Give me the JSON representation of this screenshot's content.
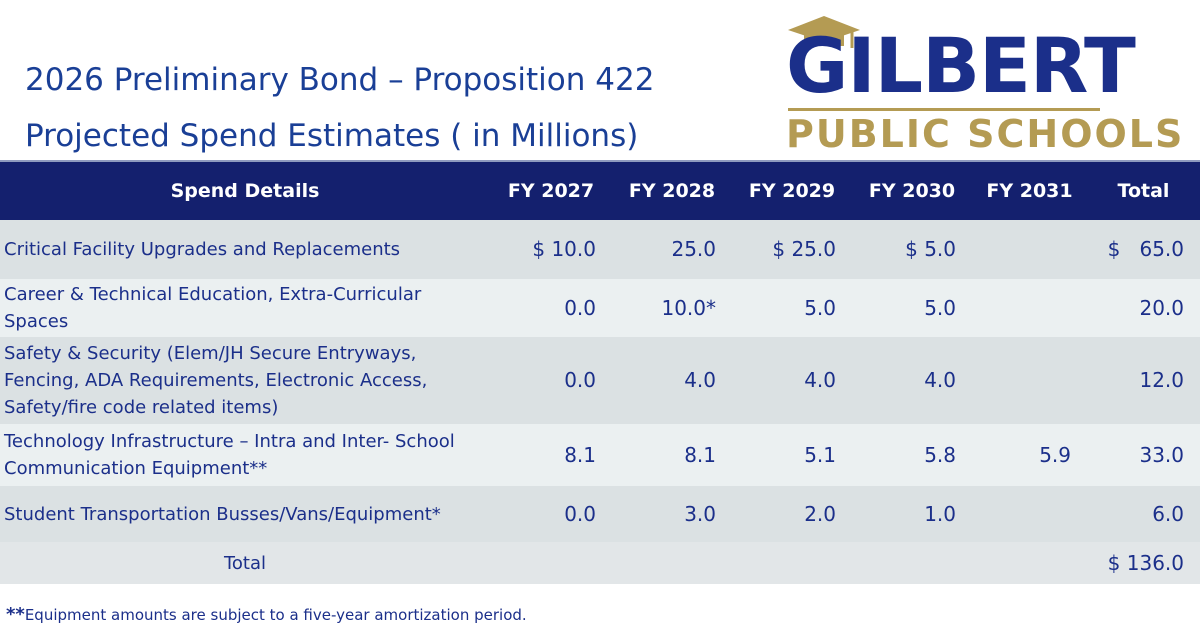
{
  "title": {
    "line1": "2026 Preliminary Bond – Proposition 422",
    "line2": "Projected Spend Estimates ( in Millions)"
  },
  "logo": {
    "main_text": "GILBERT",
    "sub_text": "PUBLIC SCHOOLS",
    "icon": "graduation-cap-icon",
    "colors": {
      "navy": "#1b2f8a",
      "gold": "#b49b53"
    }
  },
  "table": {
    "headers": [
      "Spend Details",
      "FY 2027",
      "FY 2028",
      "FY 2029",
      "FY 2030",
      "FY 2031",
      "Total"
    ],
    "rows": [
      {
        "details": "Critical Facility Upgrades and Replacements",
        "fy2027": "$ 10.0",
        "fy2028": "25.0",
        "fy2029": "$ 25.0",
        "fy2030": "$ 5.0",
        "fy2031": "",
        "total": "$   65.0"
      },
      {
        "details": "Career & Technical Education, Extra-Curricular Spaces",
        "fy2027": "0.0",
        "fy2028": "10.0*",
        "fy2029": "5.0",
        "fy2030": "5.0",
        "fy2031": "",
        "total": "20.0"
      },
      {
        "details": "Safety & Security (Elem/JH Secure Entryways, Fencing, ADA Requirements, Electronic Access, Safety/fire code related items)",
        "fy2027": "0.0",
        "fy2028": "4.0",
        "fy2029": "4.0",
        "fy2030": "4.0",
        "fy2031": "",
        "total": "12.0"
      },
      {
        "details": "Technology Infrastructure – Intra and Inter- School Communication Equipment**",
        "fy2027": "8.1",
        "fy2028": "8.1",
        "fy2029": "5.1",
        "fy2030": "5.8",
        "fy2031": "5.9",
        "total": "33.0"
      },
      {
        "details": "Student Transportation Busses/Vans/Equipment*",
        "fy2027": "0.0",
        "fy2028": "3.0",
        "fy2029": "2.0",
        "fy2030": "1.0",
        "fy2031": "",
        "total": "6.0"
      }
    ],
    "total_row": {
      "label": "Total",
      "total": "$ 136.0"
    }
  },
  "footnote": {
    "marker": "**",
    "text": "Equipment amounts are subject to a five-year amortization period."
  },
  "colors": {
    "header_bg": "#14206e",
    "text_blue": "#1b2f8a",
    "row_light": "#ebf0f1",
    "row_dark": "#dbe1e3"
  }
}
